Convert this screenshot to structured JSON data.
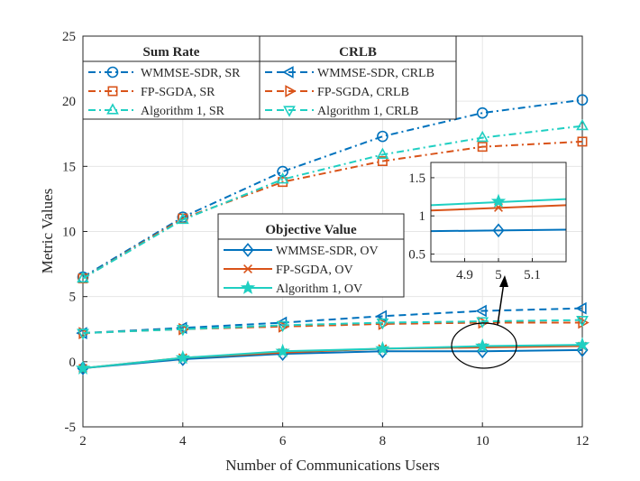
{
  "chart_data": {
    "type": "line",
    "xlabel": "Number of Communications Users",
    "ylabel": "Metric Values",
    "xlim": [
      2,
      12
    ],
    "ylim": [
      -5,
      25
    ],
    "x_ticks": [
      "2",
      "4",
      "6",
      "8",
      "10",
      "12"
    ],
    "y_ticks": [
      "-5",
      "0",
      "5",
      "10",
      "15",
      "20",
      "25"
    ],
    "grid": true,
    "x": [
      2,
      4,
      6,
      8,
      10,
      12
    ],
    "series": [
      {
        "name": "WMMSE-SDR, SR",
        "group": "sr",
        "color": "#0072BD",
        "dash": "dashdot",
        "marker": "circle",
        "values": [
          6.5,
          11.1,
          14.6,
          17.3,
          19.1,
          20.1
        ]
      },
      {
        "name": "FP-SGDA, SR",
        "group": "sr",
        "color": "#D95319",
        "dash": "dashdot",
        "marker": "square",
        "values": [
          6.4,
          11.0,
          13.8,
          15.4,
          16.5,
          16.9
        ]
      },
      {
        "name": "Algorithm 1, SR",
        "group": "sr",
        "color": "#1FCFC2",
        "dash": "dashdot",
        "marker": "triangle-up",
        "values": [
          6.4,
          10.9,
          14.0,
          15.9,
          17.2,
          18.1
        ]
      },
      {
        "name": "WMMSE-SDR, CRLB",
        "group": "crlb",
        "color": "#0072BD",
        "dash": "dash",
        "marker": "triangle-left",
        "values": [
          2.2,
          2.6,
          3.0,
          3.5,
          3.9,
          4.1
        ]
      },
      {
        "name": "FP-SGDA, CRLB",
        "group": "crlb",
        "color": "#D95319",
        "dash": "dash",
        "marker": "triangle-right",
        "values": [
          2.2,
          2.5,
          2.7,
          2.9,
          3.0,
          3.0
        ]
      },
      {
        "name": "Algorithm 1, CRLB",
        "group": "crlb",
        "color": "#1FCFC2",
        "dash": "dash",
        "marker": "triangle-down",
        "values": [
          2.2,
          2.5,
          2.8,
          3.0,
          3.1,
          3.2
        ]
      },
      {
        "name": "WMMSE-SDR, OV",
        "group": "ov",
        "color": "#0072BD",
        "dash": "solid",
        "marker": "diamond",
        "values": [
          -0.5,
          0.2,
          0.6,
          0.8,
          0.8,
          0.9
        ]
      },
      {
        "name": "FP-SGDA, OV",
        "group": "ov",
        "color": "#D95319",
        "dash": "solid",
        "marker": "x",
        "values": [
          -0.5,
          0.3,
          0.7,
          1.0,
          1.1,
          1.2
        ]
      },
      {
        "name": "Algorithm 1, OV",
        "group": "ov",
        "color": "#1FCFC2",
        "dash": "solid",
        "marker": "star",
        "values": [
          -0.5,
          0.3,
          0.8,
          1.0,
          1.2,
          1.3
        ]
      }
    ],
    "legend_titles": {
      "sr": "Sum Rate",
      "crlb": "CRLB",
      "ov": "Objective Value"
    },
    "inset": {
      "xlim": [
        4.8,
        5.2
      ],
      "ylim": [
        0.4,
        1.7
      ],
      "x_ticks": [
        "4.9",
        "5",
        "5.1"
      ],
      "y_ticks": [
        "0.5",
        "1",
        "1.5"
      ],
      "x_tick_values": [
        4.9,
        5,
        5.1
      ],
      "y_tick_values": [
        0.5,
        1,
        1.5
      ],
      "lines": [
        {
          "name": "WMMSE-SDR, OV",
          "color": "#0072BD",
          "marker": "diamond",
          "y_start": 0.8,
          "y_end": 0.82,
          "y_at_5": 0.81
        },
        {
          "name": "FP-SGDA, OV",
          "color": "#D95319",
          "marker": "x",
          "y_start": 1.07,
          "y_end": 1.14,
          "y_at_5": 1.11
        },
        {
          "name": "Algorithm 1, OV",
          "color": "#1FCFC2",
          "marker": "star",
          "y_start": 1.14,
          "y_end": 1.22,
          "y_at_5": 1.19
        }
      ]
    }
  }
}
